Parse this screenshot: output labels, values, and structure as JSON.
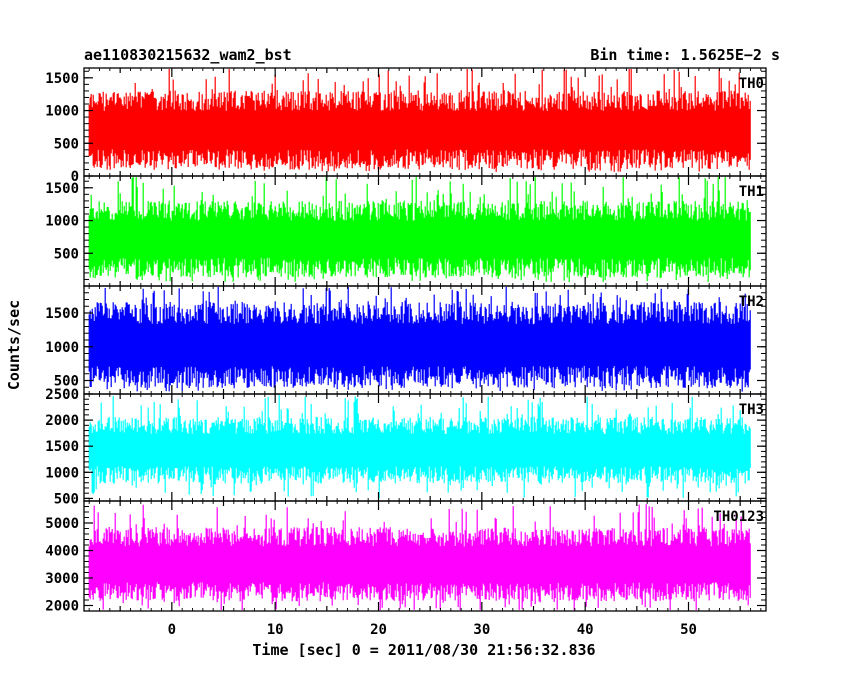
{
  "header": {
    "left_title": "ae110830215632_wam2_bst",
    "right_title": "Bin time: 1.5625E−2 s"
  },
  "chart_data": {
    "type": "line",
    "title": "ae110830215632_wam2_bst",
    "bin_time": "Bin time: 1.5625E−2 s",
    "xlabel": "Time [sec] 0 = 2011/08/30 21:56:32.836",
    "ylabel": "Counts/sec",
    "xlim": [
      -8.5,
      57.5
    ],
    "data_range": [
      -8,
      56
    ],
    "x_ticks": [
      0,
      10,
      20,
      30,
      40,
      50
    ],
    "x_tick_labels": [
      "0",
      "10",
      "20",
      "30",
      "40",
      "50"
    ],
    "grid": false,
    "panels": [
      {
        "name": "TH0",
        "color": "#ff0000",
        "ylim": [
          0,
          1650
        ],
        "y_ticks": [
          0,
          500,
          1000,
          1500
        ],
        "y_tick_labels": [
          "0",
          "500",
          "1000",
          "1500"
        ],
        "band_low": 250,
        "band_high": 1150,
        "spike_min": 60,
        "spike_max": 1700
      },
      {
        "name": "TH1",
        "color": "#00ff00",
        "ylim": [
          0,
          1680
        ],
        "y_ticks": [
          500,
          1000,
          1500
        ],
        "y_tick_labels": [
          "500",
          "1000",
          "1500"
        ],
        "band_low": 280,
        "band_high": 1150,
        "spike_min": 60,
        "spike_max": 1700
      },
      {
        "name": "TH2",
        "color": "#0000ff",
        "ylim": [
          300,
          1900
        ],
        "y_ticks": [
          500,
          1000,
          1500
        ],
        "y_tick_labels": [
          "500",
          "1000",
          "1500"
        ],
        "band_low": 550,
        "band_high": 1500,
        "spike_min": 330,
        "spike_max": 1900
      },
      {
        "name": "TH3",
        "color": "#00ffff",
        "ylim": [
          450,
          2500
        ],
        "y_ticks": [
          500,
          1000,
          1500,
          2000,
          2500
        ],
        "y_tick_labels": [
          "500",
          "1000",
          "1500",
          "2000",
          "2500"
        ],
        "band_low": 950,
        "band_high": 1900,
        "spike_min": 500,
        "spike_max": 2500
      },
      {
        "name": "TH0123",
        "color": "#ff00ff",
        "ylim": [
          1800,
          5800
        ],
        "y_ticks": [
          2000,
          3000,
          4000,
          5000
        ],
        "y_tick_labels": [
          "2000",
          "3000",
          "4000",
          "5000"
        ],
        "band_low": 2500,
        "band_high": 4500,
        "spike_min": 1800,
        "spike_max": 5700
      }
    ]
  }
}
